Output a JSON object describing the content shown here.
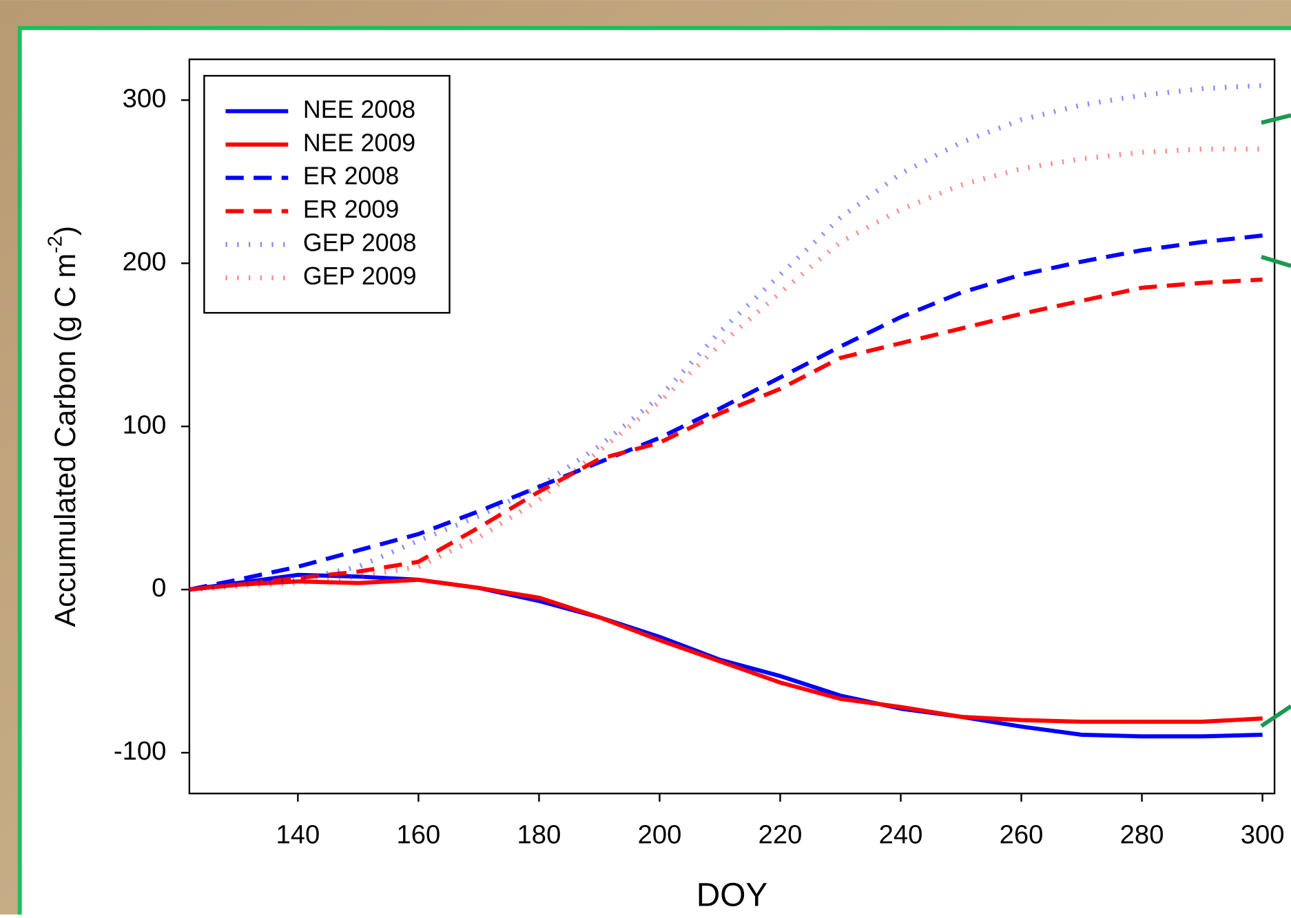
{
  "chart_data": {
    "type": "line",
    "x_label": "DOY",
    "y_label": {
      "text": "Accumulated Carbon (g C m",
      "superscript": "-2",
      "suffix": ")"
    },
    "x": [
      122,
      130,
      140,
      150,
      160,
      170,
      180,
      190,
      200,
      210,
      220,
      230,
      240,
      250,
      260,
      270,
      280,
      290,
      300
    ],
    "series": [
      {
        "name": "NEE 2008",
        "color": "#0000ff",
        "style": "solid",
        "values": [
          0,
          4,
          9,
          8,
          6,
          1,
          -7,
          -17,
          -29,
          -43,
          -53,
          -65,
          -73,
          -78,
          -84,
          -89,
          -90,
          -90,
          -89
        ]
      },
      {
        "name": "NEE 2009",
        "color": "#ff0000",
        "style": "solid",
        "values": [
          0,
          3,
          5,
          4,
          6,
          1,
          -5,
          -17,
          -31,
          -44,
          -57,
          -67,
          -72,
          -78,
          -80,
          -81,
          -81,
          -81,
          -79
        ]
      },
      {
        "name": "ER 2008",
        "color": "#0000ff",
        "style": "dashed",
        "values": [
          0,
          6,
          14,
          24,
          34,
          48,
          63,
          78,
          93,
          111,
          130,
          149,
          167,
          182,
          193,
          201,
          208,
          213,
          217
        ]
      },
      {
        "name": "ER 2009",
        "color": "#ff0000",
        "style": "dashed",
        "values": [
          0,
          3,
          7,
          11,
          17,
          38,
          60,
          80,
          90,
          108,
          123,
          142,
          151,
          160,
          169,
          177,
          185,
          188,
          190
        ]
      },
      {
        "name": "GEP 2008",
        "color": "#0000ff",
        "style": "dotted",
        "values": [
          0,
          3,
          6,
          14,
          30,
          45,
          63,
          88,
          118,
          158,
          193,
          228,
          255,
          274,
          288,
          297,
          303,
          307,
          309
        ]
      },
      {
        "name": "GEP 2009",
        "color": "#ff0000",
        "style": "dotted",
        "values": [
          0,
          2,
          4,
          8,
          14,
          32,
          55,
          85,
          115,
          150,
          182,
          213,
          233,
          248,
          258,
          264,
          268,
          270,
          270
        ]
      }
    ],
    "xlim": [
      122,
      302
    ],
    "xticks": [
      140,
      160,
      180,
      200,
      220,
      240,
      260,
      280,
      300
    ],
    "ylim": [
      -125,
      325
    ],
    "yticks": [
      -100,
      0,
      100,
      200,
      300
    ],
    "legend": "top-left",
    "grid": false
  }
}
